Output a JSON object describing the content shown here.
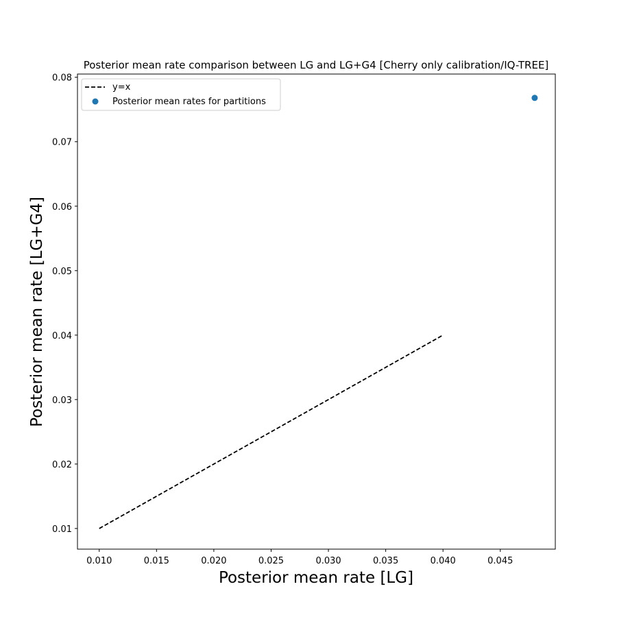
{
  "chart_data": {
    "type": "scatter",
    "title": "Posterior mean rate comparison between LG and LG+G4 [Cherry only calibration/IQ-TREE]",
    "xlabel": "Posterior mean rate [LG]",
    "ylabel": "Posterior mean rate [LG+G4]",
    "xlim": [
      0.0081,
      0.0498
    ],
    "ylim": [
      0.0068,
      0.0805
    ],
    "x_ticks": [
      "0.010",
      "0.015",
      "0.020",
      "0.025",
      "0.030",
      "0.035",
      "0.040",
      "0.045"
    ],
    "y_ticks": [
      "0.01",
      "0.02",
      "0.03",
      "0.04",
      "0.05",
      "0.06",
      "0.07",
      "0.08"
    ],
    "grid": false,
    "legend_position": "top-left",
    "series": [
      {
        "name": "y=x",
        "kind": "line",
        "style": "dashed",
        "color": "#000000",
        "x": [
          0.01,
          0.04
        ],
        "y": [
          0.01,
          0.04
        ]
      },
      {
        "name": "Posterior mean rates for partitions",
        "kind": "scatter",
        "color": "#1f77b4",
        "x": [
          0.048
        ],
        "y": [
          0.0768
        ]
      }
    ]
  }
}
